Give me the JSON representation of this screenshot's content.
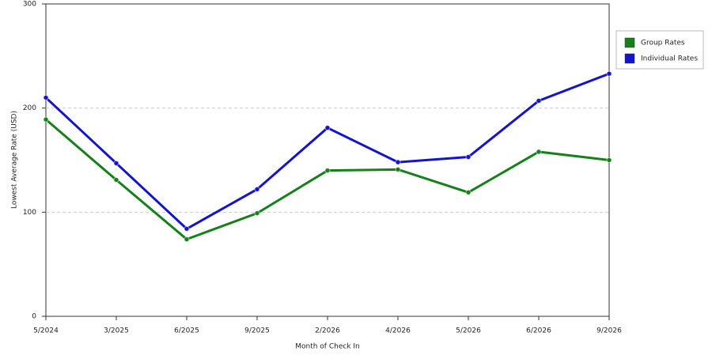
{
  "chart_data": {
    "type": "line",
    "x_label": "Month of Check In",
    "y_label": "Lowest Average Rate (USD)",
    "categories": [
      "5/2024",
      "3/2025",
      "6/2025",
      "9/2025",
      "2/2026",
      "4/2026",
      "5/2026",
      "6/2026",
      "9/2026"
    ],
    "series": [
      {
        "name": "Group Rates",
        "color": "#16801a",
        "values": [
          189,
          131,
          74,
          99,
          140,
          141,
          119,
          158,
          150
        ]
      },
      {
        "name": "Individual Rates",
        "color": "#1414cc",
        "values": [
          210,
          147,
          84,
          122,
          181,
          148,
          153,
          207,
          233
        ]
      }
    ],
    "ylim": [
      0,
      300
    ],
    "yticks": [
      0,
      100,
      200,
      300
    ],
    "grid": true
  }
}
